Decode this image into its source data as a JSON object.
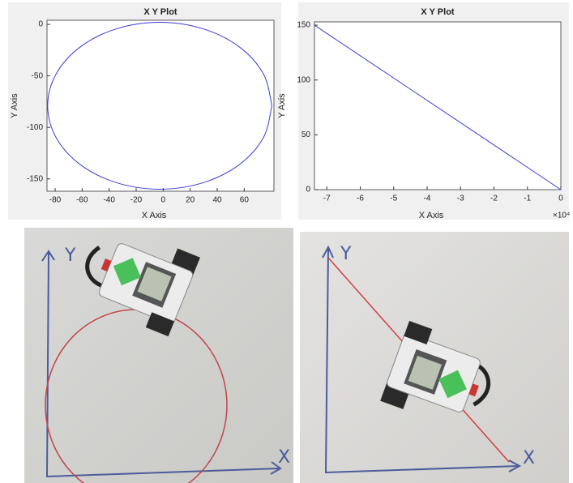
{
  "chart_data": [
    {
      "type": "line",
      "title": "X Y Plot",
      "x_label": "X Axis",
      "y_label": "Y Axis",
      "x": [
        80.5,
        74.2,
        56.2,
        29.3,
        -2.5,
        -34.3,
        -61.2,
        -79.2,
        -85.5,
        -79.2,
        -61.2,
        -34.3,
        -2.5,
        29.3,
        56.2,
        74.2,
        80.5
      ],
      "series": [
        {
          "color": "#3b3bd6",
          "values": [
            -79,
            -48.0,
            -21.7,
            -4.2,
            2,
            -4.2,
            -21.7,
            -48.0,
            -79,
            -110.0,
            -136.3,
            -153.8,
            -160,
            -153.8,
            -136.3,
            -110.0,
            -79
          ]
        }
      ],
      "smooth": true,
      "xlim": [
        -86,
        82
      ],
      "ylim": [
        -162,
        4
      ],
      "xticks": [
        -80,
        -60,
        -40,
        -20,
        0,
        20,
        40,
        60
      ],
      "yticks": [
        -150,
        -100,
        -50,
        0
      ]
    },
    {
      "type": "line",
      "title": "X Y Plot",
      "x_label": "X Axis",
      "y_label": "Y Axis",
      "x_multiplier": "×10⁴",
      "x": [
        -7.37,
        0
      ],
      "series": [
        {
          "color": "#3b3bd6",
          "values": [
            150,
            0
          ]
        }
      ],
      "smooth": false,
      "xlim": [
        -7.37,
        0
      ],
      "ylim": [
        0,
        153
      ],
      "xticks": [
        -7,
        -6,
        -5,
        -4,
        -3,
        -2,
        -1,
        0
      ],
      "yticks": [
        0,
        50,
        100,
        150
      ]
    }
  ],
  "photos": [
    {
      "x_label": "X",
      "y_label": "Y"
    },
    {
      "x_label": "X",
      "y_label": "Y"
    }
  ]
}
